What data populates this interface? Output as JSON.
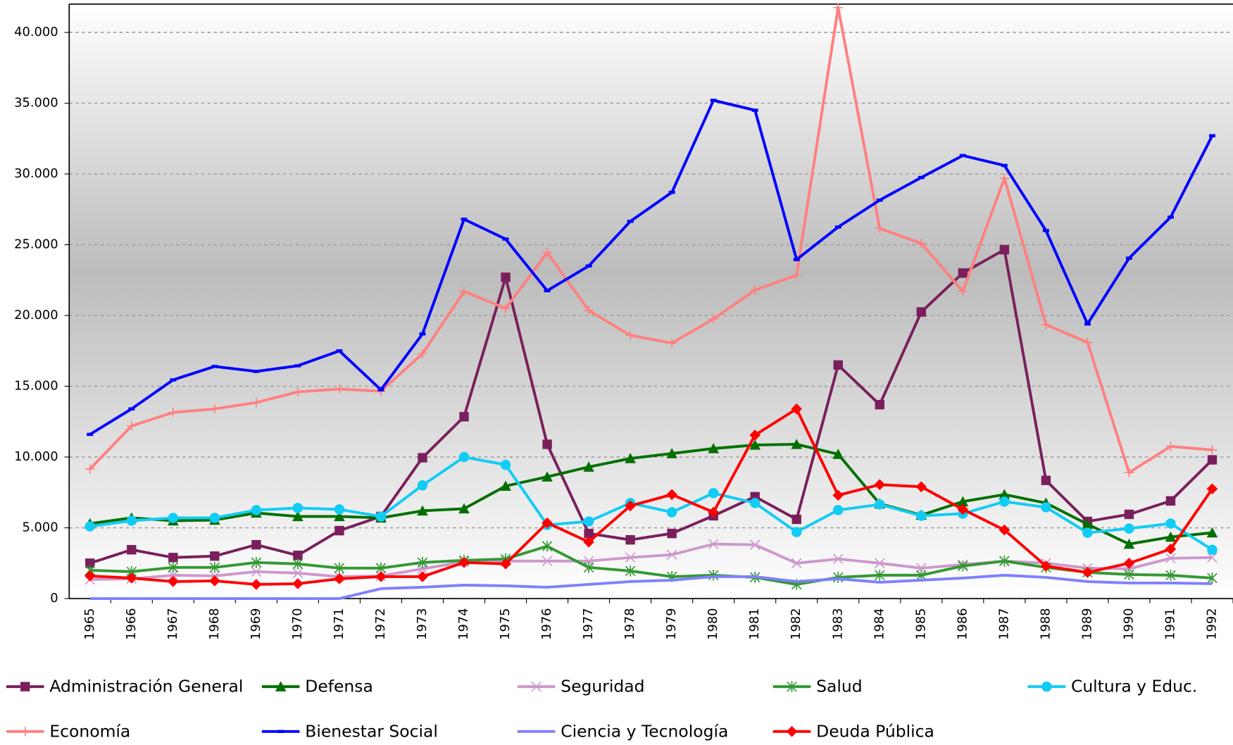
{
  "chart_data": {
    "type": "line",
    "categories": [
      "1965",
      "1966",
      "1967",
      "1968",
      "1969",
      "1970",
      "1971",
      "1972",
      "1973",
      "1974",
      "1975",
      "1976",
      "1977",
      "1978",
      "1979",
      "1980",
      "1981",
      "1982",
      "1983",
      "1984",
      "1985",
      "1986",
      "1987",
      "1988",
      "1989",
      "1990",
      "1991",
      "1992"
    ],
    "ylim": [
      0,
      42000
    ],
    "yticks": [
      0,
      {
        "value": 5000,
        "label": "5.000"
      },
      {
        "value": 10000,
        "label": "10.000"
      },
      {
        "value": 15000,
        "label": "15.000"
      },
      {
        "value": 20000,
        "label": "20.000"
      },
      {
        "value": 25000,
        "label": "25.000"
      },
      {
        "value": 30000,
        "label": "30.000"
      },
      {
        "value": 35000,
        "label": "35.000"
      },
      {
        "value": 40000,
        "label": "40.000"
      }
    ],
    "grid": true,
    "legend": "bottom",
    "series": [
      {
        "name": "Administración General",
        "color": "#7a1f5c",
        "marker": "square",
        "values": [
          2500,
          3450,
          2900,
          3000,
          3800,
          3050,
          4800,
          5800,
          9950,
          12850,
          22700,
          10900,
          4600,
          4150,
          4600,
          5850,
          7200,
          5600,
          16500,
          13700,
          20250,
          23000,
          24650,
          8350,
          5450,
          5950,
          6900,
          9800
        ]
      },
      {
        "name": "Defensa",
        "color": "#007000",
        "marker": "triangle",
        "values": [
          5300,
          5700,
          5500,
          5550,
          6050,
          5800,
          5800,
          5700,
          6200,
          6350,
          7950,
          8600,
          9300,
          9900,
          10250,
          10600,
          10850,
          10900,
          10200,
          6700,
          5900,
          6850,
          7350,
          6750,
          5250,
          3850,
          4350,
          4650
        ]
      },
      {
        "name": "Seguridad",
        "color": "#cc99cc",
        "marker": "x",
        "values": [
          1350,
          1400,
          1650,
          1600,
          1900,
          1800,
          1550,
          1600,
          2100,
          2600,
          2650,
          2650,
          2650,
          2900,
          3100,
          3850,
          3800,
          2500,
          2800,
          2500,
          2150,
          2400,
          2650,
          2500,
          2150,
          2100,
          2850,
          2900
        ]
      },
      {
        "name": "Salud",
        "color": "#339933",
        "marker": "asterisk",
        "values": [
          2000,
          1900,
          2200,
          2200,
          2550,
          2450,
          2150,
          2150,
          2550,
          2700,
          2800,
          3700,
          2200,
          1950,
          1550,
          1650,
          1500,
          1000,
          1500,
          1650,
          1650,
          2300,
          2650,
          2200,
          1850,
          1700,
          1650,
          1450
        ]
      },
      {
        "name": "Cultura y Educ.",
        "color": "#11ccf5",
        "marker": "circle",
        "values": [
          5100,
          5500,
          5700,
          5700,
          6250,
          6400,
          6300,
          5800,
          8000,
          10000,
          9450,
          5200,
          5450,
          6750,
          6100,
          7450,
          6750,
          4700,
          6250,
          6650,
          5850,
          6000,
          6850,
          6450,
          4650,
          4950,
          5300,
          3450
        ]
      },
      {
        "name": "Economía",
        "color": "#ff8080",
        "marker": "plus",
        "values": [
          9150,
          12200,
          13150,
          13400,
          13850,
          14600,
          14800,
          14650,
          17300,
          21700,
          20500,
          24450,
          20350,
          18600,
          18050,
          19750,
          21800,
          22850,
          41750,
          26150,
          25100,
          21700,
          29700,
          19350,
          18100,
          8900,
          10750,
          10500
        ]
      },
      {
        "name": "Bienestar Social",
        "color": "#0000ff",
        "marker": "dash",
        "values": [
          11600,
          13400,
          15450,
          16400,
          16050,
          16450,
          17500,
          14750,
          18700,
          26800,
          25400,
          21750,
          23500,
          26650,
          28700,
          35200,
          34500,
          23950,
          26250,
          28150,
          29750,
          31300,
          30600,
          26000,
          19400,
          24050,
          26950,
          32700
        ]
      },
      {
        "name": "Ciencia y Tecnología",
        "color": "#8080ff",
        "marker": "none",
        "values": [
          0,
          0,
          0,
          0,
          0,
          0,
          0,
          700,
          800,
          950,
          900,
          800,
          1000,
          1200,
          1300,
          1550,
          1550,
          1200,
          1400,
          1150,
          1300,
          1450,
          1650,
          1500,
          1200,
          1100,
          1100,
          1050
        ]
      },
      {
        "name": "Deuda Pública",
        "color": "#ff0000",
        "marker": "diamond",
        "values": [
          1600,
          1450,
          1200,
          1250,
          1000,
          1050,
          1400,
          1550,
          1550,
          2550,
          2450,
          5350,
          4000,
          6550,
          7350,
          6100,
          11550,
          13400,
          7300,
          8050,
          7900,
          6300,
          4850,
          2300,
          1850,
          2500,
          3500,
          7750
        ]
      }
    ]
  }
}
